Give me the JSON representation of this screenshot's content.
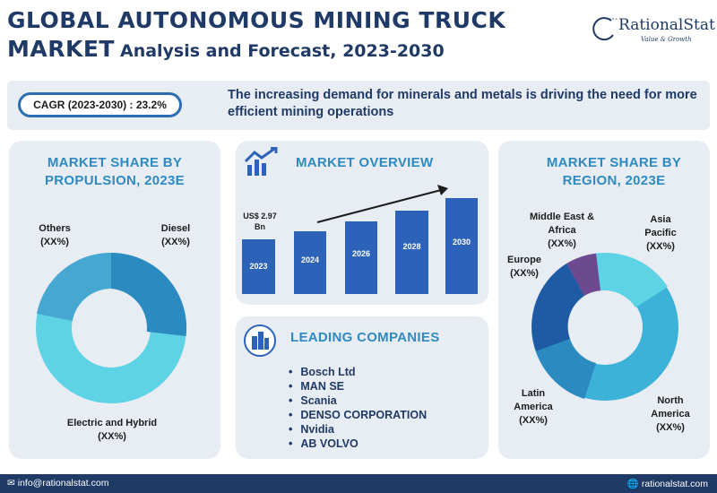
{
  "header": {
    "title_line1": "GLOBAL AUTONOMOUS MINING TRUCK",
    "title_line2_main": "MARKET",
    "title_line2_sub": "Analysis and Forecast, 2023-2030"
  },
  "logo": {
    "name": "RationalStat",
    "tagline": "Value & Growth"
  },
  "banner": {
    "cagr": "CAGR (2023-2030) : 23.2%",
    "text": "The increasing demand for minerals and metals is driving the need for more efficient mining operations"
  },
  "propulsion": {
    "title": "MARKET SHARE BY PROPULSION, 2023E",
    "labels": [
      {
        "name": "Others",
        "value": "(XX%)"
      },
      {
        "name": "Diesel",
        "value": "(XX%)"
      },
      {
        "name": "Electric and Hybrid",
        "value": "(XX%)"
      }
    ],
    "colors": [
      "#46a8d0",
      "#2b8ac0",
      "#5fd3e6"
    ]
  },
  "overview": {
    "title": "MARKET OVERVIEW",
    "value_label": "US$ 2.97 Bn",
    "years": [
      "2023",
      "2024",
      "2026",
      "2028",
      "2030"
    ],
    "bar_color": "#2c63b8"
  },
  "companies": {
    "title": "LEADING COMPANIES",
    "items": [
      "Bosch Ltd",
      "MAN SE",
      "Scania",
      "DENSO CORPORATION",
      "Nvidia",
      "AB VOLVO"
    ]
  },
  "region": {
    "title": "MARKET SHARE BY REGION, 2023E",
    "labels": [
      {
        "name": "Middle East & Africa",
        "value": "(XX%)"
      },
      {
        "name": "Asia Pacific",
        "value": "(XX%)"
      },
      {
        "name": "Europe",
        "value": "(XX%)"
      },
      {
        "name": "Latin America",
        "value": "(XX%)"
      },
      {
        "name": "North America",
        "value": "(XX%)"
      }
    ],
    "colors": [
      "#6d4a8f",
      "#5fd3e6",
      "#1f5aa5",
      "#2b8ac0",
      "#3cb2d8"
    ]
  },
  "footer": {
    "email": "info@rationalstat.com",
    "website": "rationalstat.com"
  }
}
